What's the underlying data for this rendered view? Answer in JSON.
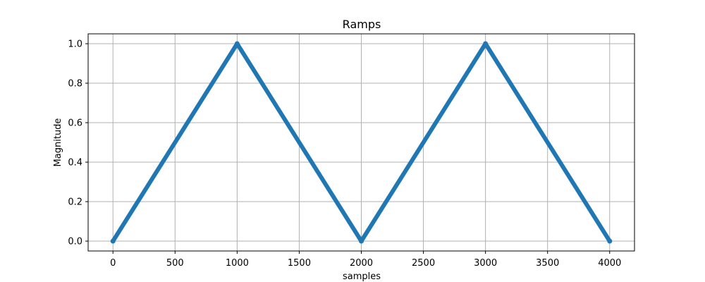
{
  "chart_data": {
    "type": "line",
    "title": "Ramps",
    "xlabel": "samples",
    "ylabel": "Magnitude",
    "xlim": [
      -200,
      4200
    ],
    "ylim": [
      -0.05,
      1.05
    ],
    "xticks": [
      0,
      500,
      1000,
      1500,
      2000,
      2500,
      3000,
      3500,
      4000
    ],
    "yticks": [
      0.0,
      0.2,
      0.4,
      0.6,
      0.8,
      1.0
    ],
    "xtick_labels": [
      "0",
      "500",
      "1000",
      "1500",
      "2000",
      "2500",
      "3000",
      "3500",
      "4000"
    ],
    "ytick_labels": [
      "0.0",
      "0.2",
      "0.4",
      "0.6",
      "0.8",
      "1.0"
    ],
    "grid": true,
    "series": [
      {
        "x": [
          0,
          1000,
          2000,
          3000,
          4000
        ],
        "y": [
          0.0,
          1.0,
          0.0,
          1.0,
          0.0
        ],
        "color": "#1f77b4"
      }
    ]
  }
}
